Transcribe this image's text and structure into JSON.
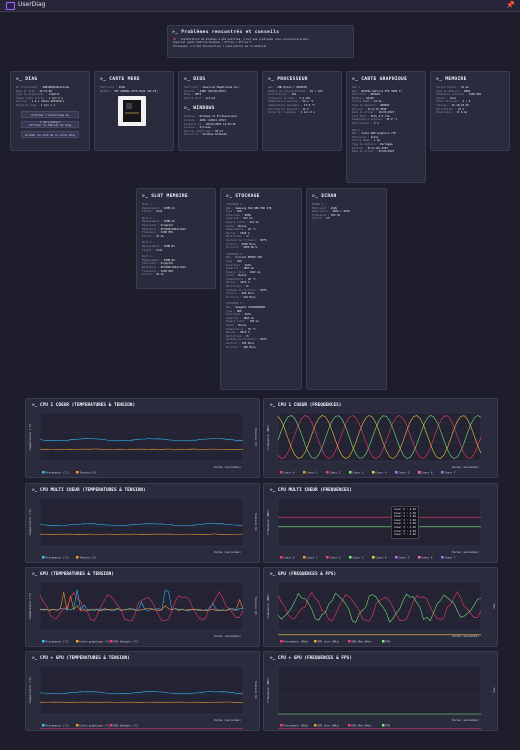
{
  "app": {
    "title": "UserDiag"
  },
  "problems": {
    "title": ">_ Problèmes rencontrés et conseils",
    "lines": [
      {
        "tag": "OS :",
        "text": "Installation de Windows a été modifiée, n'est pas pratiquée (non-reconnue/activée)."
      },
      {
        "tag": "",
        "text": "Logiciel ayant modifié Windows : Office / Office 5"
      },
      {
        "tag": "",
        "text": "Processeur n'a été découvert(e) l'explication de ce matériel"
      }
    ]
  },
  "diag": {
    "title": ">_ DIAG",
    "lines": [
      {
        "k": "ID utilisateur :",
        "v": "A6Bs8KQ0dXsksfvw9"
      },
      {
        "k": "Date du diag :",
        "v": "20:14:00"
      },
      {
        "k": "Type de diagnostic :",
        "v": "Complet"
      },
      {
        "k": "Temps total écoulé :",
        "v": "1 min 6 s"
      },
      {
        "k": "Version :",
        "v": "1.4.1 (Beta 20230417)"
      },
      {
        "k": "Durée du diag :",
        "v": "1 min 1 s"
      }
    ],
    "buttons": [
      "Afficher l'historique de l'utilisateur",
      "Afficher le CMscott de diag",
      "Accéder au site de la carte mère"
    ]
  },
  "motherboard": {
    "title": ">_ CARTE MERE",
    "lines": [
      {
        "k": "Fabricant :",
        "v": "ASUS"
      },
      {
        "k": "Modèle :",
        "v": "TUF GAMING X570-PLUS (WI-FI)"
      }
    ]
  },
  "bios": {
    "title": ">_ BIOS",
    "lines": [
      {
        "k": "Fabricant :",
        "v": "American Megatrends Inc."
      },
      {
        "k": "Version :",
        "v": "4408 (02/08/2023)"
      },
      {
        "k": "Mode :",
        "v": "UEFI"
      },
      {
        "k": "Secure boot :",
        "v": "Activé"
      }
    ]
  },
  "windows": {
    "title": ">_ WINDOWS",
    "lines": [
      {
        "k": "Windows :",
        "v": "Windows 11 Professionnel"
      },
      {
        "k": "Version :",
        "v": "22H2 (22621.1702)"
      },
      {
        "k": "Installé le :",
        "v": "20/02/2023 12:35:36"
      },
      {
        "k": "Licence :",
        "v": "Activée"
      },
      {
        "k": "Dernier démarrage :",
        "v": "00:13"
      },
      {
        "k": "Antivirus :",
        "v": "Windows Defender"
      }
    ]
  },
  "cpu": {
    "title": ">_ PROCESSEUR",
    "lines": [
      {
        "k": "Nom :",
        "v": "AMD Ryzen 7 5800X3D"
      },
      {
        "k": "Nombre de coeurs/threads :",
        "v": "8C / 16T"
      },
      {
        "k": "Architecture :",
        "v": "x64"
      },
      {
        "k": "Fréquence de base :",
        "v": "3.4 GHz"
      },
      {
        "k": "Température moyenne :",
        "v": "54.1 °C"
      },
      {
        "k": "Température maximale :",
        "v": "77.0 °C"
      },
      {
        "k": "Utilisation moyenne :",
        "v": "12 %"
      },
      {
        "k": "Durée de l'analyse :",
        "v": "1 min 0 s"
      }
    ]
  },
  "gpu": {
    "title": ">_ CARTE GRAPHIQUE",
    "blocks": [
      {
        "head": "GPU 1 :",
        "lines": [
          {
            "k": "Nom :",
            "v": "NVIDIA GeForce RTX 3080 Ti"
          },
          {
            "k": "Fabricant :",
            "v": "NVIDIA"
          },
          {
            "k": "Modèle :",
            "v": "GA102"
          },
          {
            "k": "Taille VRAM :",
            "v": "12 Go"
          },
          {
            "k": "Type de mémoire :",
            "v": "GDDR6X"
          },
          {
            "k": "Version :",
            "v": "31.0.15.3598"
          },
          {
            "k": "Date du driver :",
            "v": "10/05/2023"
          },
          {
            "k": "Slot PCIe :",
            "v": "PCIe 4.0 x16"
          },
          {
            "k": "Température moyenne :",
            "v": "45.0 °C"
          },
          {
            "k": "Utilisation :",
            "v": "5 %"
          }
        ]
      },
      {
        "head": "GPU 2 :",
        "lines": [
          {
            "k": "Nom :",
            "v": "Intel UHD Graphics 770"
          },
          {
            "k": "Fabricant :",
            "v": "Intel"
          },
          {
            "k": "Taille VRAM :",
            "v": "1 Go"
          },
          {
            "k": "Type de mémoire :",
            "v": "Partagée"
          },
          {
            "k": "Version :",
            "v": "31.0.101.4255"
          },
          {
            "k": "Date du driver :",
            "v": "03/03/2023"
          }
        ]
      }
    ]
  },
  "memory": {
    "title": ">_ MEMOIRE",
    "lines": [
      {
        "k": "Taille totale :",
        "v": "32 Go"
      },
      {
        "k": "Type de mémoire :",
        "v": "DDR4"
      },
      {
        "k": "Fréquence actuelle :",
        "v": "3200 MHz"
      },
      {
        "k": "Canaux :",
        "v": "Dual"
      },
      {
        "k": "Slots utilisés :",
        "v": "2 / 4"
      },
      {
        "k": "Timings :",
        "v": "16-18-18-36"
      },
      {
        "k": "Utilisation :",
        "v": "45 %"
      },
      {
        "k": "Disponible :",
        "v": "17.6 Go"
      }
    ]
  },
  "slots": {
    "title": ">_ SLOT MEMOIRE",
    "blocks": [
      {
        "head": "SLOT 1 :",
        "lines": [
          {
            "k": "Emplacement :",
            "v": "DIMM_A1"
          },
          {
            "k": "Statut :",
            "v": "Vide"
          }
        ]
      },
      {
        "head": "SLOT 2 :",
        "lines": [
          {
            "k": "Emplacement :",
            "v": "DIMM_A2"
          },
          {
            "k": "Fabricant :",
            "v": "Kingston"
          },
          {
            "k": "Référence :",
            "v": "KF3200C16D4/16GX"
          },
          {
            "k": "Fréquence :",
            "v": "3200 MHz"
          },
          {
            "k": "Taille :",
            "v": "16 Go"
          }
        ]
      },
      {
        "head": "SLOT 3 :",
        "lines": [
          {
            "k": "Emplacement :",
            "v": "DIMM_B1"
          },
          {
            "k": "Statut :",
            "v": "Vide"
          }
        ]
      },
      {
        "head": "SLOT 4 :",
        "lines": [
          {
            "k": "Emplacement :",
            "v": "DIMM_B2"
          },
          {
            "k": "Fabricant :",
            "v": "Kingston"
          },
          {
            "k": "Référence :",
            "v": "KF3200C16D4/16GX"
          },
          {
            "k": "Fréquence :",
            "v": "3200 MHz"
          },
          {
            "k": "Taille :",
            "v": "16 Go"
          }
        ]
      }
    ]
  },
  "storage": {
    "title": ">_ STOCKAGE",
    "blocks": [
      {
        "head": "STOCKAGE 1 :",
        "lines": [
          {
            "k": "Nom :",
            "v": "Samsung SSD 980 PRO 1TB"
          },
          {
            "k": "Type :",
            "v": "SSD"
          },
          {
            "k": "Interface :",
            "v": "NVMe"
          },
          {
            "k": "Capacité :",
            "v": "931 Go"
          },
          {
            "k": "Espace libre :",
            "v": "512 Go"
          },
          {
            "k": "Santé :",
            "v": "Bonne"
          },
          {
            "k": "Température :",
            "v": "42 °C"
          },
          {
            "k": "Heures :",
            "v": "1520 h"
          },
          {
            "k": "Partitions :",
            "v": "C:"
          },
          {
            "k": "Système de fichiers :",
            "v": "NTFS"
          },
          {
            "k": "Lecture :",
            "v": "6900 Mo/s"
          },
          {
            "k": "Écriture :",
            "v": "5000 Mo/s"
          }
        ]
      },
      {
        "head": "STOCKAGE 2 :",
        "lines": [
          {
            "k": "Nom :",
            "v": "Crucial MX500 2TB"
          },
          {
            "k": "Type :",
            "v": "SSD"
          },
          {
            "k": "Interface :",
            "v": "SATA"
          },
          {
            "k": "Capacité :",
            "v": "1863 Go"
          },
          {
            "k": "Espace libre :",
            "v": "1102 Go"
          },
          {
            "k": "Santé :",
            "v": "Bonne"
          },
          {
            "k": "Température :",
            "v": "36 °C"
          },
          {
            "k": "Heures :",
            "v": "4210 h"
          },
          {
            "k": "Partitions :",
            "v": "D:"
          },
          {
            "k": "Système de fichiers :",
            "v": "NTFS"
          },
          {
            "k": "Lecture :",
            "v": "560 Mo/s"
          },
          {
            "k": "Écriture :",
            "v": "510 Mo/s"
          }
        ]
      },
      {
        "head": "STOCKAGE 3 :",
        "lines": [
          {
            "k": "Nom :",
            "v": "Seagate ST2000DM008"
          },
          {
            "k": "Type :",
            "v": "HDD"
          },
          {
            "k": "Interface :",
            "v": "SATA"
          },
          {
            "k": "Capacité :",
            "v": "1863 Go"
          },
          {
            "k": "Espace libre :",
            "v": "740 Go"
          },
          {
            "k": "Santé :",
            "v": "Bonne"
          },
          {
            "k": "Température :",
            "v": "33 °C"
          },
          {
            "k": "Heures :",
            "v": "9870 h"
          },
          {
            "k": "Partitions :",
            "v": "E:"
          },
          {
            "k": "Système de fichiers :",
            "v": "NTFS"
          },
          {
            "k": "Lecture :",
            "v": "190 Mo/s"
          },
          {
            "k": "Écriture :",
            "v": "180 Mo/s"
          }
        ]
      }
    ]
  },
  "screen": {
    "title": ">_ ECRAN",
    "blocks": [
      {
        "head": "ECRAN 1 :",
        "lines": [
          {
            "k": "Fabricant :",
            "v": "ASUS"
          },
          {
            "k": "Résolution :",
            "v": "2560 x 1440"
          },
          {
            "k": "Fréquence :",
            "v": "165 Hz"
          },
          {
            "k": "Taille :",
            "v": "27\""
          }
        ]
      }
    ]
  },
  "charts": [
    {
      "title": ">_ CPU 1 COEUR (TEMPERATURES & TENSION)",
      "ylabel": "Température (°C)",
      "y2label": "Tension (V)",
      "xlabel": "Durée (secondes)",
      "legend": [
        "Processeur (°C)",
        "Tension (V)"
      ]
    },
    {
      "title": ">_ CPU 1 COEUR (FREQUENCES)",
      "ylabel": "Fréquence (MHz)",
      "xlabel": "Durée (secondes)",
      "legend": [
        "Coeur 0",
        "Coeur 1",
        "Coeur 2",
        "Coeur 3",
        "Coeur 4",
        "Coeur 5",
        "Coeur 6",
        "Coeur 7"
      ]
    },
    {
      "title": ">_ CPU MULTI COEUR (TEMPERATURES & TENSION)",
      "ylabel": "Température (°C)",
      "y2label": "Tension (V)",
      "xlabel": "Durée (secondes)",
      "legend": [
        "Processeur (°C)",
        "Tension (V)"
      ]
    },
    {
      "title": ">_ CPU MULTI COEUR (FREQUENCES)",
      "ylabel": "Fréquence (MHz)",
      "xlabel": "Durée (secondes)",
      "legend": [
        "Coeur 0",
        "Coeur 1",
        "Coeur 2",
        "Coeur 3",
        "Coeur 4",
        "Coeur 5",
        "Coeur 6",
        "Coeur 7"
      ]
    },
    {
      "title": ">_ GPU (TEMPERATURES & TENSION)",
      "ylabel": "Température (°C)",
      "y2label": "Tension (V)",
      "xlabel": "Durée (secondes)",
      "legend": [
        "Processeur (°C)",
        "Carte graphique (°C)",
        "GPU Hotspot (°C)"
      ]
    },
    {
      "title": ">_ GPU (FREQUENCES & FPS)",
      "ylabel": "Fréquence (MHz)",
      "y2label": "FPS",
      "xlabel": "Durée (secondes)",
      "legend": [
        "Processeur (MHz)",
        "GPU Core (MHz)",
        "GPU Mem (MHz)",
        "FPS"
      ]
    },
    {
      "title": ">_ CPU + GPU (TEMPERATURES & TENSION)",
      "ylabel": "Température (°C)",
      "y2label": "Tension (V)",
      "xlabel": "Durée (secondes)",
      "legend": [
        "Processeur (°C)",
        "Carte graphique (°C)",
        "GPU Hotspot (°C)"
      ]
    },
    {
      "title": ">_ CPU + GPU (FREQUENCES & FPS)",
      "ylabel": "Fréquence (MHz)",
      "y2label": "FPS",
      "xlabel": "Durée (secondes)",
      "legend": [
        "Processeur (MHz)",
        "GPU Core (MHz)",
        "GPU Mem (MHz)",
        "FPS"
      ]
    }
  ],
  "tooltip": {
    "rows": [
      "Coeur 0 : 4.48",
      "Coeur 1 : 4.48",
      "Coeur 2 : 4.48",
      "Coeur 3 : 4.48",
      "Coeur 4 : 4.48",
      "Coeur 5 : 4.48",
      "Coeur 6 : 4.48",
      "Coeur 7 : 4.48"
    ]
  },
  "colors": {
    "accent": "#9b6bff",
    "series": [
      "#35c3ff",
      "#ff9e2a",
      "#ff3b6b",
      "#7cf07c",
      "#ffd23b",
      "#c46bff",
      "#ff6bd6",
      "#6b8dff"
    ]
  }
}
